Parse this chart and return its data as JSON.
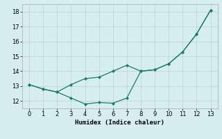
{
  "x": [
    0,
    1,
    2,
    3,
    4,
    5,
    6,
    7,
    8,
    9,
    10,
    11,
    12,
    13
  ],
  "line1": [
    13.1,
    12.8,
    12.6,
    13.1,
    13.5,
    13.6,
    14.0,
    14.4,
    14.0,
    14.1,
    14.5,
    15.3,
    16.5,
    18.1
  ],
  "line2": [
    13.1,
    12.8,
    12.6,
    12.2,
    11.8,
    11.9,
    11.85,
    12.2,
    14.0,
    14.1,
    14.5,
    15.3,
    16.5,
    18.1
  ],
  "line_color": "#1a7a6e",
  "marker": "D",
  "marker_size": 2.5,
  "xlabel": "Humidex (Indice chaleur)",
  "ylim": [
    11.5,
    18.5
  ],
  "xlim": [
    -0.5,
    13.5
  ],
  "yticks": [
    12,
    13,
    14,
    15,
    16,
    17,
    18
  ],
  "xticks": [
    0,
    1,
    2,
    3,
    4,
    5,
    6,
    7,
    8,
    9,
    10,
    11,
    12,
    13
  ],
  "bg_color": "#d6eef0",
  "grid_color": "#c0d4d8",
  "label_fontsize": 6.5,
  "tick_fontsize": 6.0
}
